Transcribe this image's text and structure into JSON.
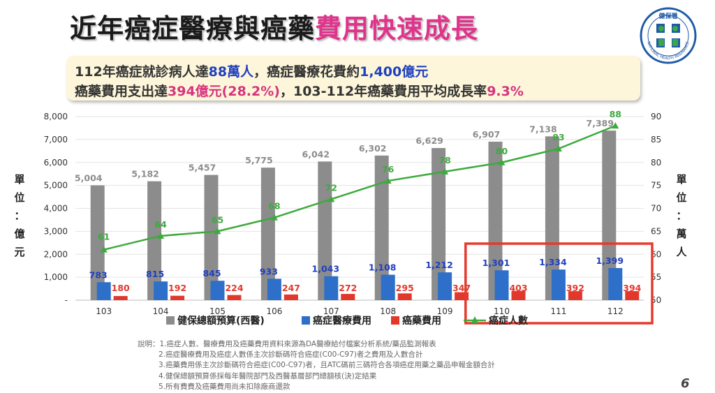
{
  "title": {
    "main": "近年癌症醫療與癌藥",
    "highlight": "費用快速成長"
  },
  "summary": {
    "line1": [
      {
        "text": "112年癌症就診病人達",
        "style": "plain"
      },
      {
        "text": "88萬人",
        "style": "blue"
      },
      {
        "text": "，癌症醫療花費約",
        "style": "plain"
      },
      {
        "text": "1,400億元",
        "style": "blue"
      }
    ],
    "line2": [
      {
        "text": "癌藥費用支出達",
        "style": "plain"
      },
      {
        "text": "394億元(28.2%)",
        "style": "pink"
      },
      {
        "text": "，103-112年癌藥費用平均成長率",
        "style": "plain"
      },
      {
        "text": "9.3%",
        "style": "pink"
      }
    ]
  },
  "left_unit": [
    "單",
    "位",
    "：",
    "億",
    "元"
  ],
  "right_unit": [
    "單",
    "位",
    "：",
    "萬",
    "人"
  ],
  "chart_data": {
    "type": "bar",
    "categories": [
      "103",
      "104",
      "105",
      "106",
      "107",
      "108",
      "109",
      "110",
      "111",
      "112"
    ],
    "ylim": [
      0,
      8000
    ],
    "y_ticks": [
      "-",
      "1,000",
      "2,000",
      "3,000",
      "4,000",
      "5,000",
      "6,000",
      "7,000",
      "8,000"
    ],
    "y2lim": [
      50,
      90
    ],
    "y2_ticks": [
      "50",
      "55",
      "60",
      "65",
      "70",
      "75",
      "80",
      "85",
      "90"
    ],
    "series": [
      {
        "name": "健保總額預算(西醫)",
        "type": "bar",
        "color": "#8c8c8c",
        "values": [
          5004,
          5182,
          5457,
          5775,
          6042,
          6302,
          6629,
          6907,
          7138,
          7389
        ],
        "labels": [
          "5,004",
          "5,182",
          "5,457",
          "5,775",
          "6,042",
          "6,302",
          "6,629",
          "6,907",
          "7,138",
          "7,389"
        ]
      },
      {
        "name": "癌症醫療費用",
        "type": "bar",
        "color": "#2e6fc9",
        "values": [
          783,
          815,
          845,
          933,
          1043,
          1108,
          1212,
          1301,
          1334,
          1399
        ],
        "labels": [
          "783",
          "815",
          "845",
          "933",
          "1,043",
          "1,108",
          "1,212",
          "1,301",
          "1,334",
          "1,399"
        ]
      },
      {
        "name": "癌藥費用",
        "type": "bar",
        "color": "#e2382c",
        "values": [
          180,
          192,
          224,
          247,
          272,
          295,
          347,
          403,
          392,
          394
        ],
        "labels": [
          "180",
          "192",
          "224",
          "247",
          "272",
          "295",
          "347",
          "403",
          "392",
          "394"
        ]
      },
      {
        "name": "癌症人數",
        "type": "line",
        "axis": "right",
        "color": "#3daa3d",
        "values": [
          61,
          64,
          65,
          68,
          72,
          76,
          78,
          80,
          83,
          88
        ],
        "labels": [
          "61",
          "64",
          "65",
          "68",
          "72",
          "76",
          "78",
          "80",
          "83",
          "88"
        ]
      }
    ],
    "highlight_categories": [
      "110",
      "111",
      "112"
    ],
    "highlight_color": "#e53a2c",
    "legend_position": "bottom",
    "grid": true
  },
  "notes": [
    "說明：1.癌症人數、醫療費用及癌藥費用資料來源為DA醫療給付檔案分析系統/藥品監測報表",
    "2.癌症醫療費用及癌症人數係主次診斷碼符合癌症(C00-C97)者之費用及人數合計",
    "3.癌藥費用係主次診斷碼符合癌症(C00-C97)者，且ATC碼前三碼符合各項癌症用藥之藥品申報金額合計",
    "4.健保總額預算係採每年醫院部門及西醫基層部門總額核(決)定結果",
    "5.所有費費及癌藥費用尚未扣除廠商還款"
  ],
  "page_number": "6",
  "logo": {
    "name": "national-health-insurance-logo",
    "text_top": "健保署",
    "text_ring": "NATIONAL HEALTH INSURANCE",
    "color": "#1f5aa6",
    "accent": "#3aa84a"
  }
}
